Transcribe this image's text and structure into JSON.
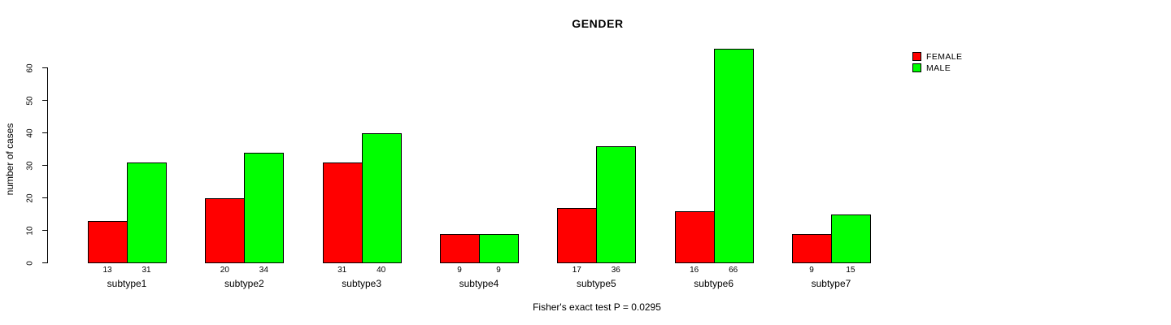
{
  "chart_data": {
    "type": "bar",
    "title": "GENDER",
    "categories": [
      "subtype1",
      "subtype2",
      "subtype3",
      "subtype4",
      "subtype5",
      "subtype6",
      "subtype7"
    ],
    "series": [
      {
        "name": "FEMALE",
        "color": "#FF0000",
        "values": [
          13,
          20,
          31,
          9,
          17,
          16,
          9
        ]
      },
      {
        "name": "MALE",
        "color": "#00FF00",
        "values": [
          31,
          34,
          40,
          9,
          36,
          66,
          15
        ]
      }
    ],
    "xlabel": "",
    "ylabel": "number of cases",
    "ylim": [
      0,
      66
    ],
    "yticks": [
      0,
      10,
      20,
      30,
      40,
      50,
      60
    ],
    "grid": false,
    "legend_position": "top-right",
    "bar_value_labels": true,
    "annotation": "Fisher's exact test P = 0.0295",
    "axis_color": "#000000",
    "background_color": "#FFFFFF"
  }
}
